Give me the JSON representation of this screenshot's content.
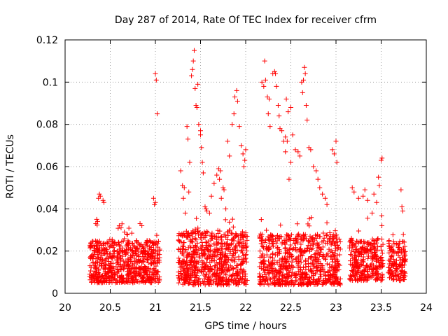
{
  "chart_data": {
    "type": "scatter",
    "title": "Day 287 of 2014, Rate Of TEC Index for receiver cfrm",
    "xlabel": "GPS time / hours",
    "ylabel": "ROTI / TECUs",
    "xlim": [
      20,
      24
    ],
    "ylim": [
      0,
      0.12
    ],
    "x_ticks": [
      20,
      20.5,
      21,
      21.5,
      22,
      22.5,
      23,
      23.5,
      24
    ],
    "x_tick_labels": [
      "20",
      "20.5",
      "21",
      "21.5",
      "22",
      "22.5",
      "23",
      "23.5",
      "24"
    ],
    "y_ticks": [
      0,
      0.02,
      0.04,
      0.06,
      0.08,
      0.1,
      0.12
    ],
    "y_tick_labels": [
      "0",
      "0.02",
      "0.04",
      "0.06",
      "0.08",
      "0.1",
      "0.12"
    ],
    "grid": true,
    "marker": "+",
    "marker_color": "#ff0000",
    "series": [
      {
        "name": "ROTI",
        "clusters": [
          {
            "x_range": [
              20.27,
              21.05
            ],
            "base_range": [
              0.005,
              0.025
            ],
            "points": 700
          },
          {
            "x_range": [
              21.25,
              22.02
            ],
            "base_range": [
              0.004,
              0.03
            ],
            "points": 700
          },
          {
            "x_range": [
              22.15,
              23.05
            ],
            "base_range": [
              0.004,
              0.028
            ],
            "points": 750
          },
          {
            "x_range": [
              23.15,
              23.52
            ],
            "base_range": [
              0.006,
              0.026
            ],
            "points": 300
          },
          {
            "x_range": [
              23.58,
              23.77
            ],
            "base_range": [
              0.006,
              0.025
            ],
            "points": 150
          }
        ],
        "points": [
          [
            20.38,
            0.047
          ],
          [
            20.37,
            0.045
          ],
          [
            20.39,
            0.046
          ],
          [
            20.42,
            0.044
          ],
          [
            20.43,
            0.043
          ],
          [
            20.35,
            0.035
          ],
          [
            20.36,
            0.034
          ],
          [
            20.34,
            0.033
          ],
          [
            20.6,
            0.032
          ],
          [
            20.62,
            0.031
          ],
          [
            20.83,
            0.033
          ],
          [
            20.85,
            0.032
          ],
          [
            20.98,
            0.045
          ],
          [
            21.0,
            0.043
          ],
          [
            20.99,
            0.042
          ],
          [
            21.0,
            0.104
          ],
          [
            21.01,
            0.101
          ],
          [
            21.02,
            0.085
          ],
          [
            21.28,
            0.058
          ],
          [
            21.3,
            0.051
          ],
          [
            21.32,
            0.05
          ],
          [
            21.31,
            0.045
          ],
          [
            21.33,
            0.038
          ],
          [
            21.35,
            0.079
          ],
          [
            21.36,
            0.073
          ],
          [
            21.38,
            0.062
          ],
          [
            21.37,
            0.048
          ],
          [
            21.4,
            0.103
          ],
          [
            21.42,
            0.11
          ],
          [
            21.43,
            0.115
          ],
          [
            21.41,
            0.106
          ],
          [
            21.44,
            0.097
          ],
          [
            21.45,
            0.089
          ],
          [
            21.46,
            0.088
          ],
          [
            21.47,
            0.099
          ],
          [
            21.48,
            0.08
          ],
          [
            21.5,
            0.077
          ],
          [
            21.5,
            0.075
          ],
          [
            21.51,
            0.069
          ],
          [
            21.52,
            0.062
          ],
          [
            21.53,
            0.057
          ],
          [
            21.55,
            0.041
          ],
          [
            21.56,
            0.04
          ],
          [
            21.57,
            0.039
          ],
          [
            21.6,
            0.038
          ],
          [
            21.62,
            0.046
          ],
          [
            21.65,
            0.052
          ],
          [
            21.68,
            0.056
          ],
          [
            21.7,
            0.059
          ],
          [
            21.72,
            0.058
          ],
          [
            21.71,
            0.054
          ],
          [
            21.73,
            0.045
          ],
          [
            21.75,
            0.05
          ],
          [
            21.76,
            0.049
          ],
          [
            21.78,
            0.04
          ],
          [
            21.8,
            0.072
          ],
          [
            21.82,
            0.065
          ],
          [
            21.85,
            0.08
          ],
          [
            21.87,
            0.085
          ],
          [
            21.88,
            0.093
          ],
          [
            21.9,
            0.096
          ],
          [
            21.91,
            0.091
          ],
          [
            21.93,
            0.079
          ],
          [
            21.95,
            0.07
          ],
          [
            21.97,
            0.066
          ],
          [
            21.99,
            0.063
          ],
          [
            22.0,
            0.068
          ],
          [
            21.98,
            0.06
          ],
          [
            22.18,
            0.1
          ],
          [
            22.2,
            0.098
          ],
          [
            22.21,
            0.11
          ],
          [
            22.22,
            0.101
          ],
          [
            22.24,
            0.093
          ],
          [
            22.26,
            0.092
          ],
          [
            22.25,
            0.085
          ],
          [
            22.27,
            0.079
          ],
          [
            22.3,
            0.104
          ],
          [
            22.32,
            0.105
          ],
          [
            22.33,
            0.104
          ],
          [
            22.34,
            0.098
          ],
          [
            22.36,
            0.089
          ],
          [
            22.37,
            0.084
          ],
          [
            22.38,
            0.078
          ],
          [
            22.4,
            0.077
          ],
          [
            22.42,
            0.072
          ],
          [
            22.44,
            0.074
          ],
          [
            22.45,
            0.092
          ],
          [
            22.47,
            0.086
          ],
          [
            22.5,
            0.088
          ],
          [
            22.52,
            0.075
          ],
          [
            22.55,
            0.068
          ],
          [
            22.58,
            0.067
          ],
          [
            22.6,
            0.065
          ],
          [
            22.62,
            0.1
          ],
          [
            22.64,
            0.101
          ],
          [
            22.65,
            0.107
          ],
          [
            22.66,
            0.104
          ],
          [
            22.63,
            0.095
          ],
          [
            22.67,
            0.089
          ],
          [
            22.68,
            0.082
          ],
          [
            22.7,
            0.069
          ],
          [
            22.72,
            0.068
          ],
          [
            22.75,
            0.06
          ],
          [
            22.78,
            0.058
          ],
          [
            22.8,
            0.054
          ],
          [
            22.82,
            0.05
          ],
          [
            22.85,
            0.047
          ],
          [
            22.88,
            0.045
          ],
          [
            22.9,
            0.042
          ],
          [
            22.96,
            0.068
          ],
          [
            22.98,
            0.066
          ],
          [
            23.0,
            0.072
          ],
          [
            23.01,
            0.062
          ],
          [
            22.48,
            0.054
          ],
          [
            22.5,
            0.062
          ],
          [
            22.46,
            0.072
          ],
          [
            22.44,
            0.067
          ],
          [
            23.18,
            0.05
          ],
          [
            23.2,
            0.048
          ],
          [
            23.25,
            0.045
          ],
          [
            23.3,
            0.046
          ],
          [
            23.32,
            0.049
          ],
          [
            23.35,
            0.044
          ],
          [
            23.4,
            0.038
          ],
          [
            23.42,
            0.047
          ],
          [
            23.45,
            0.043
          ],
          [
            23.47,
            0.055
          ],
          [
            23.48,
            0.051
          ],
          [
            23.5,
            0.063
          ],
          [
            23.51,
            0.064
          ],
          [
            23.72,
            0.049
          ],
          [
            23.73,
            0.041
          ],
          [
            23.74,
            0.039
          ]
        ]
      }
    ]
  }
}
